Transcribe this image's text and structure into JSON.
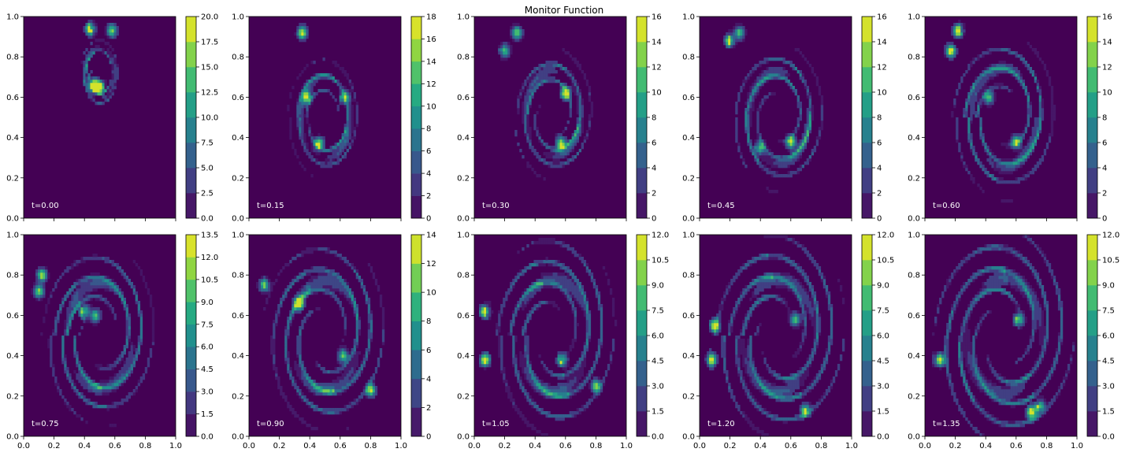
{
  "chart_data": {
    "type": "heatmap",
    "title": "Monitor Function",
    "colormap": "viridis",
    "xlim": [
      0,
      1
    ],
    "ylim": [
      0,
      1
    ],
    "x_ticks": [
      "0.0",
      "0.2",
      "0.4",
      "0.6",
      "0.8",
      "1.0"
    ],
    "y_ticks": [
      "0.0",
      "0.2",
      "0.4",
      "0.6",
      "0.8",
      "1.0"
    ],
    "grid": false,
    "panels": [
      {
        "time_label": "t=0.00",
        "colorbar_ticks": [
          "0.0",
          "2.5",
          "5.0",
          "7.5",
          "10.0",
          "12.5",
          "15.0",
          "17.5",
          "20.0"
        ],
        "colorbar_range": [
          0,
          20
        ],
        "colorbar_levels": 8,
        "vortex": {
          "center": [
            0.5,
            0.72
          ],
          "rx": 0.12,
          "ry": 0.16,
          "rotation": 0.35,
          "spread": 0.35,
          "hot": [
            [
              0.5,
              0.65
            ],
            [
              0.46,
              0.66
            ],
            [
              0.44,
              0.94
            ],
            [
              0.58,
              0.93
            ]
          ]
        }
      },
      {
        "time_label": "t=0.15",
        "colorbar_ticks": [
          "0",
          "2",
          "4",
          "6",
          "8",
          "10",
          "12",
          "14",
          "16",
          "18"
        ],
        "colorbar_range": [
          0,
          18
        ],
        "colorbar_levels": 9,
        "vortex": {
          "center": [
            0.5,
            0.5
          ],
          "rx": 0.2,
          "ry": 0.25,
          "rotation": 0.8,
          "spread": 0.8,
          "hot": [
            [
              0.63,
              0.6
            ],
            [
              0.38,
              0.6
            ],
            [
              0.46,
              0.37
            ],
            [
              0.35,
              0.92
            ]
          ]
        }
      },
      {
        "time_label": "t=0.30",
        "colorbar_ticks": [
          "0",
          "2",
          "4",
          "6",
          "8",
          "10",
          "12",
          "14",
          "16"
        ],
        "colorbar_range": [
          0,
          16
        ],
        "colorbar_levels": 8,
        "vortex": {
          "center": [
            0.52,
            0.52
          ],
          "rx": 0.22,
          "ry": 0.26,
          "rotation": 1.3,
          "spread": 1.1,
          "hot": [
            [
              0.28,
              0.92
            ],
            [
              0.6,
              0.62
            ],
            [
              0.57,
              0.37
            ],
            [
              0.2,
              0.83
            ]
          ]
        }
      },
      {
        "time_label": "t=0.45",
        "colorbar_ticks": [
          "0",
          "2",
          "4",
          "6",
          "8",
          "10",
          "12",
          "14",
          "16"
        ],
        "colorbar_range": [
          0,
          16
        ],
        "colorbar_levels": 8,
        "vortex": {
          "center": [
            0.52,
            0.5
          ],
          "rx": 0.24,
          "ry": 0.28,
          "rotation": 1.7,
          "spread": 1.3,
          "hot": [
            [
              0.2,
              0.88
            ],
            [
              0.6,
              0.38
            ],
            [
              0.26,
              0.92
            ],
            [
              0.4,
              0.35
            ]
          ]
        }
      },
      {
        "time_label": "t=0.60",
        "colorbar_ticks": [
          "0",
          "2",
          "4",
          "6",
          "8",
          "10",
          "12",
          "14",
          "16"
        ],
        "colorbar_range": [
          0,
          16
        ],
        "colorbar_levels": 8,
        "vortex": {
          "center": [
            0.52,
            0.5
          ],
          "rx": 0.26,
          "ry": 0.3,
          "rotation": 2.1,
          "spread": 1.5,
          "hot": [
            [
              0.17,
              0.83
            ],
            [
              0.22,
              0.93
            ],
            [
              0.42,
              0.6
            ],
            [
              0.6,
              0.38
            ]
          ]
        }
      },
      {
        "time_label": "t=0.75",
        "colorbar_ticks": [
          "0.0",
          "1.5",
          "3.0",
          "4.5",
          "6.0",
          "7.5",
          "9.0",
          "10.5",
          "12.0",
          "13.5"
        ],
        "colorbar_range": [
          0,
          13.5
        ],
        "colorbar_levels": 9,
        "vortex": {
          "center": [
            0.5,
            0.5
          ],
          "rx": 0.27,
          "ry": 0.32,
          "rotation": 2.5,
          "spread": 1.7,
          "hot": [
            [
              0.12,
              0.8
            ],
            [
              0.4,
              0.62
            ],
            [
              0.47,
              0.6
            ],
            [
              0.1,
              0.72
            ]
          ]
        }
      },
      {
        "time_label": "t=0.90",
        "colorbar_ticks": [
          "0",
          "2",
          "4",
          "6",
          "8",
          "10",
          "12",
          "14"
        ],
        "colorbar_range": [
          0,
          14
        ],
        "colorbar_levels": 7,
        "vortex": {
          "center": [
            0.5,
            0.5
          ],
          "rx": 0.28,
          "ry": 0.33,
          "rotation": 2.9,
          "spread": 1.9,
          "hot": [
            [
              0.1,
              0.75
            ],
            [
              0.33,
              0.66
            ],
            [
              0.62,
              0.4
            ],
            [
              0.8,
              0.23
            ]
          ]
        }
      },
      {
        "time_label": "t=1.05",
        "colorbar_ticks": [
          "0.0",
          "1.5",
          "3.0",
          "4.5",
          "6.0",
          "7.5",
          "9.0",
          "10.5",
          "12.0"
        ],
        "colorbar_range": [
          0,
          12
        ],
        "colorbar_levels": 8,
        "vortex": {
          "center": [
            0.52,
            0.5
          ],
          "rx": 0.28,
          "ry": 0.34,
          "rotation": 3.3,
          "spread": 2.1,
          "hot": [
            [
              0.07,
              0.62
            ],
            [
              0.58,
              0.38
            ],
            [
              0.07,
              0.38
            ],
            [
              0.8,
              0.25
            ]
          ]
        }
      },
      {
        "time_label": "t=1.20",
        "colorbar_ticks": [
          "0.0",
          "1.5",
          "3.0",
          "4.5",
          "6.0",
          "7.5",
          "9.0",
          "10.5",
          "12.0"
        ],
        "colorbar_range": [
          0,
          12
        ],
        "colorbar_levels": 8,
        "vortex": {
          "center": [
            0.52,
            0.5
          ],
          "rx": 0.29,
          "ry": 0.34,
          "rotation": 3.7,
          "spread": 2.3,
          "hot": [
            [
              0.08,
              0.38
            ],
            [
              0.63,
              0.58
            ],
            [
              0.7,
              0.13
            ],
            [
              0.1,
              0.55
            ]
          ]
        }
      },
      {
        "time_label": "t=1.35",
        "colorbar_ticks": [
          "0.0",
          "1.5",
          "3.0",
          "4.5",
          "6.0",
          "7.5",
          "9.0",
          "10.5",
          "12.0"
        ],
        "colorbar_range": [
          0,
          12
        ],
        "colorbar_levels": 8,
        "vortex": {
          "center": [
            0.52,
            0.5
          ],
          "rx": 0.3,
          "ry": 0.35,
          "rotation": 4.1,
          "spread": 2.5,
          "hot": [
            [
              0.7,
              0.12
            ],
            [
              0.1,
              0.38
            ],
            [
              0.62,
              0.58
            ],
            [
              0.76,
              0.15
            ]
          ]
        }
      }
    ]
  }
}
